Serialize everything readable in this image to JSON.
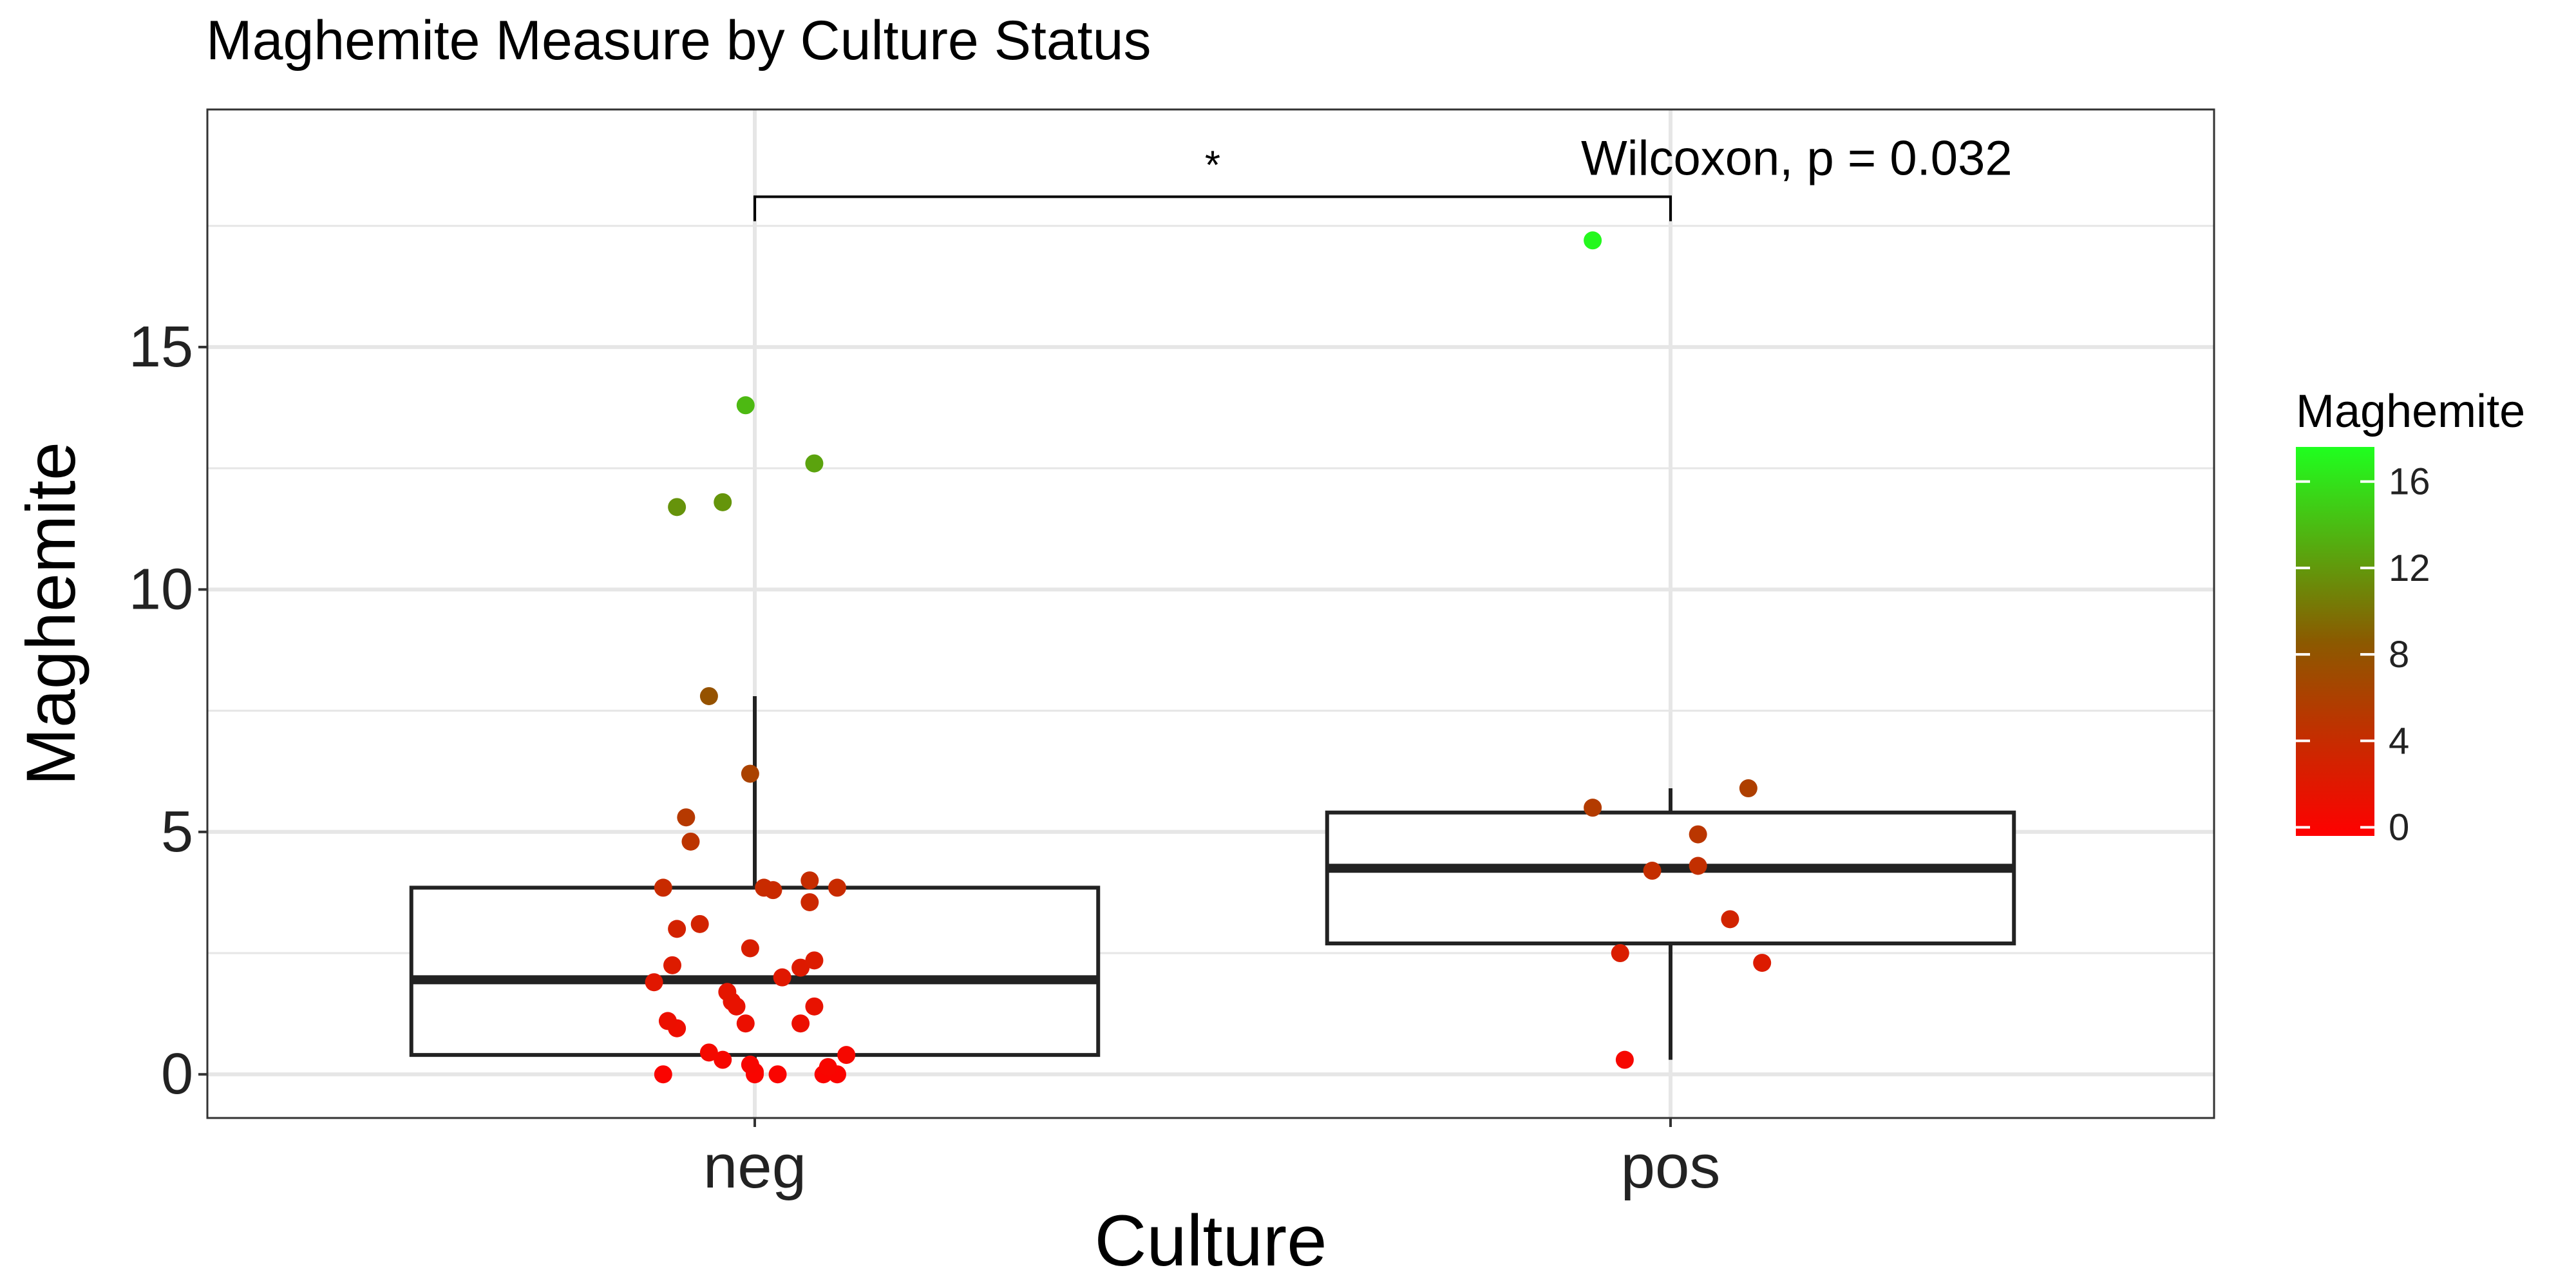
{
  "chart_data": {
    "type": "box-jitter",
    "title": "Maghemite Measure by Culture Status",
    "xlabel": "Culture",
    "ylabel": "Maghemite",
    "categories": [
      "neg",
      "pos"
    ],
    "ylim": [
      -0.9,
      19.9
    ],
    "yticks": [
      0,
      5,
      10,
      15
    ],
    "grid": true,
    "boxes": [
      {
        "category": "neg",
        "lower_whisker": 0.0,
        "q1": 0.4,
        "median": 1.95,
        "q3": 3.85,
        "upper_whisker": 7.8
      },
      {
        "category": "pos",
        "lower_whisker": 0.3,
        "q1": 2.7,
        "median": 4.25,
        "q3": 5.4,
        "upper_whisker": 5.9
      }
    ],
    "points": {
      "neg": [
        {
          "x": 0.0,
          "y": 0.0
        },
        {
          "x": 0.09,
          "y": 0.0
        },
        {
          "x": 0.075,
          "y": 0.0
        },
        {
          "x": 0.025,
          "y": 0.0
        },
        {
          "x": 0.0,
          "y": 0.05
        },
        {
          "x": -0.005,
          "y": 0.2
        },
        {
          "x": -0.035,
          "y": 0.3
        },
        {
          "x": -0.05,
          "y": 0.45
        },
        {
          "x": -0.1,
          "y": 0.0
        },
        {
          "x": -0.085,
          "y": 0.95
        },
        {
          "x": -0.095,
          "y": 1.1
        },
        {
          "x": -0.01,
          "y": 1.05
        },
        {
          "x": 0.05,
          "y": 1.05
        },
        {
          "x": 0.08,
          "y": 0.15
        },
        {
          "x": 0.1,
          "y": 0.4
        },
        {
          "x": -0.025,
          "y": 1.5
        },
        {
          "x": -0.02,
          "y": 1.4
        },
        {
          "x": -0.03,
          "y": 1.7
        },
        {
          "x": 0.065,
          "y": 1.4
        },
        {
          "x": 0.03,
          "y": 2.0
        },
        {
          "x": -0.11,
          "y": 1.9
        },
        {
          "x": -0.09,
          "y": 2.25
        },
        {
          "x": 0.05,
          "y": 2.2
        },
        {
          "x": 0.065,
          "y": 2.35
        },
        {
          "x": -0.005,
          "y": 2.6
        },
        {
          "x": -0.085,
          "y": 3.0
        },
        {
          "x": -0.06,
          "y": 3.1
        },
        {
          "x": 0.06,
          "y": 3.55
        },
        {
          "x": -0.1,
          "y": 3.85
        },
        {
          "x": 0.01,
          "y": 3.85
        },
        {
          "x": 0.02,
          "y": 3.8
        },
        {
          "x": 0.06,
          "y": 4.0
        },
        {
          "x": 0.09,
          "y": 3.85
        },
        {
          "x": -0.07,
          "y": 4.8
        },
        {
          "x": -0.075,
          "y": 5.3
        },
        {
          "x": -0.005,
          "y": 6.2
        },
        {
          "x": -0.05,
          "y": 7.8
        },
        {
          "x": -0.085,
          "y": 11.7
        },
        {
          "x": -0.035,
          "y": 11.8
        },
        {
          "x": 0.065,
          "y": 12.6
        },
        {
          "x": -0.01,
          "y": 13.8
        }
      ],
      "pos": [
        {
          "x": -0.085,
          "y": 17.2
        },
        {
          "x": -0.085,
          "y": 5.5
        },
        {
          "x": 0.03,
          "y": 4.95
        },
        {
          "x": 0.085,
          "y": 5.9
        },
        {
          "x": 0.03,
          "y": 4.3
        },
        {
          "x": -0.02,
          "y": 4.2
        },
        {
          "x": 0.065,
          "y": 3.2
        },
        {
          "x": -0.055,
          "y": 2.5
        },
        {
          "x": 0.1,
          "y": 2.3
        },
        {
          "x": -0.05,
          "y": 0.3
        }
      ]
    },
    "significance": {
      "label": "*",
      "groups": [
        "neg",
        "pos"
      ],
      "y": 18.1
    },
    "annotation": "Wilcoxon, p = 0.032",
    "annotation_y": 18.9,
    "legend": {
      "title": "Maghemite",
      "position": "right",
      "range": [
        -0.4,
        17.6
      ],
      "ticks": [
        0,
        4,
        8,
        12,
        16
      ],
      "low_color": "#ff0000",
      "mid_color": "#8b5a00",
      "high_color": "#1fff1f"
    }
  }
}
